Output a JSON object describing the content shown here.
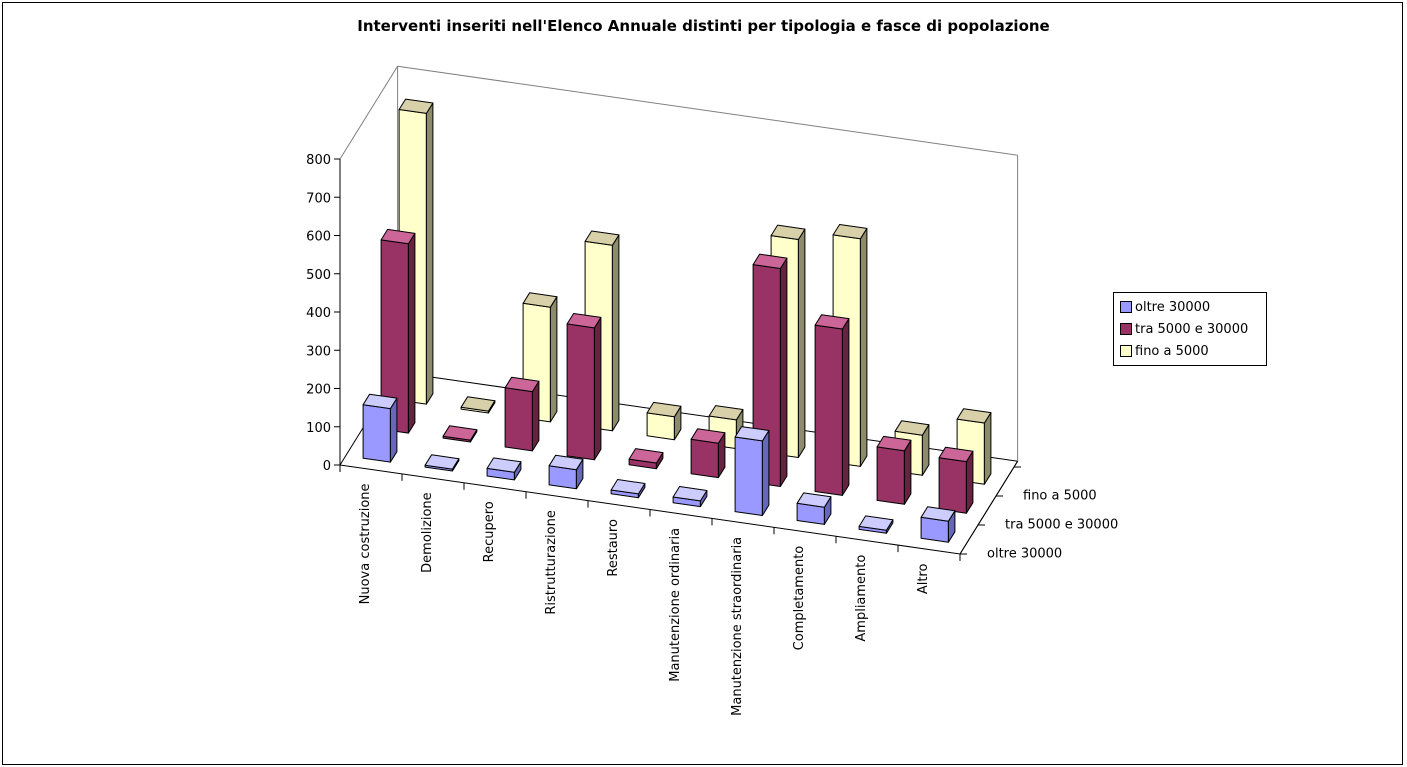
{
  "chart_data": {
    "type": "bar",
    "title": "Interventi inseriti nell'Elenco Annuale distinti per tipologia e fasce di popolazione",
    "categories": [
      "Nuova costruzione",
      "Demolizione",
      "Recupero",
      "Ristrutturazione",
      "Restauro",
      "Manutenzione ordinaria",
      "Manutenzione straordinaria",
      "Completamento",
      "Ampliamento",
      "Altro"
    ],
    "series": [
      {
        "name": "oltre 30000",
        "values": [
          140,
          5,
          20,
          50,
          10,
          15,
          195,
          45,
          8,
          55
        ]
      },
      {
        "name": "tra 5000 e 30000",
        "values": [
          495,
          5,
          155,
          345,
          15,
          90,
          570,
          435,
          140,
          135
        ]
      },
      {
        "name": "fino a 5000",
        "values": [
          760,
          5,
          300,
          485,
          60,
          75,
          570,
          595,
          105,
          160
        ]
      }
    ],
    "ylim": [
      0,
      800
    ],
    "yticks": [
      "0",
      "100",
      "200",
      "300",
      "400",
      "500",
      "600",
      "700",
      "800"
    ],
    "depth_labels": [
      "fino a 5000",
      "tra 5000 e 30000",
      "oltre 30000"
    ],
    "legend_position": "right",
    "colors": {
      "oltre 30000": {
        "front": "#9999ff",
        "top": "#ccccff",
        "side": "#6666bb"
      },
      "tra 5000 e 30000": {
        "front": "#993366",
        "top": "#cc6699",
        "side": "#66223f"
      },
      "fino a 5000": {
        "front": "#ffffcc",
        "top": "#d8d0a8",
        "side": "#8c8c6c"
      }
    }
  }
}
